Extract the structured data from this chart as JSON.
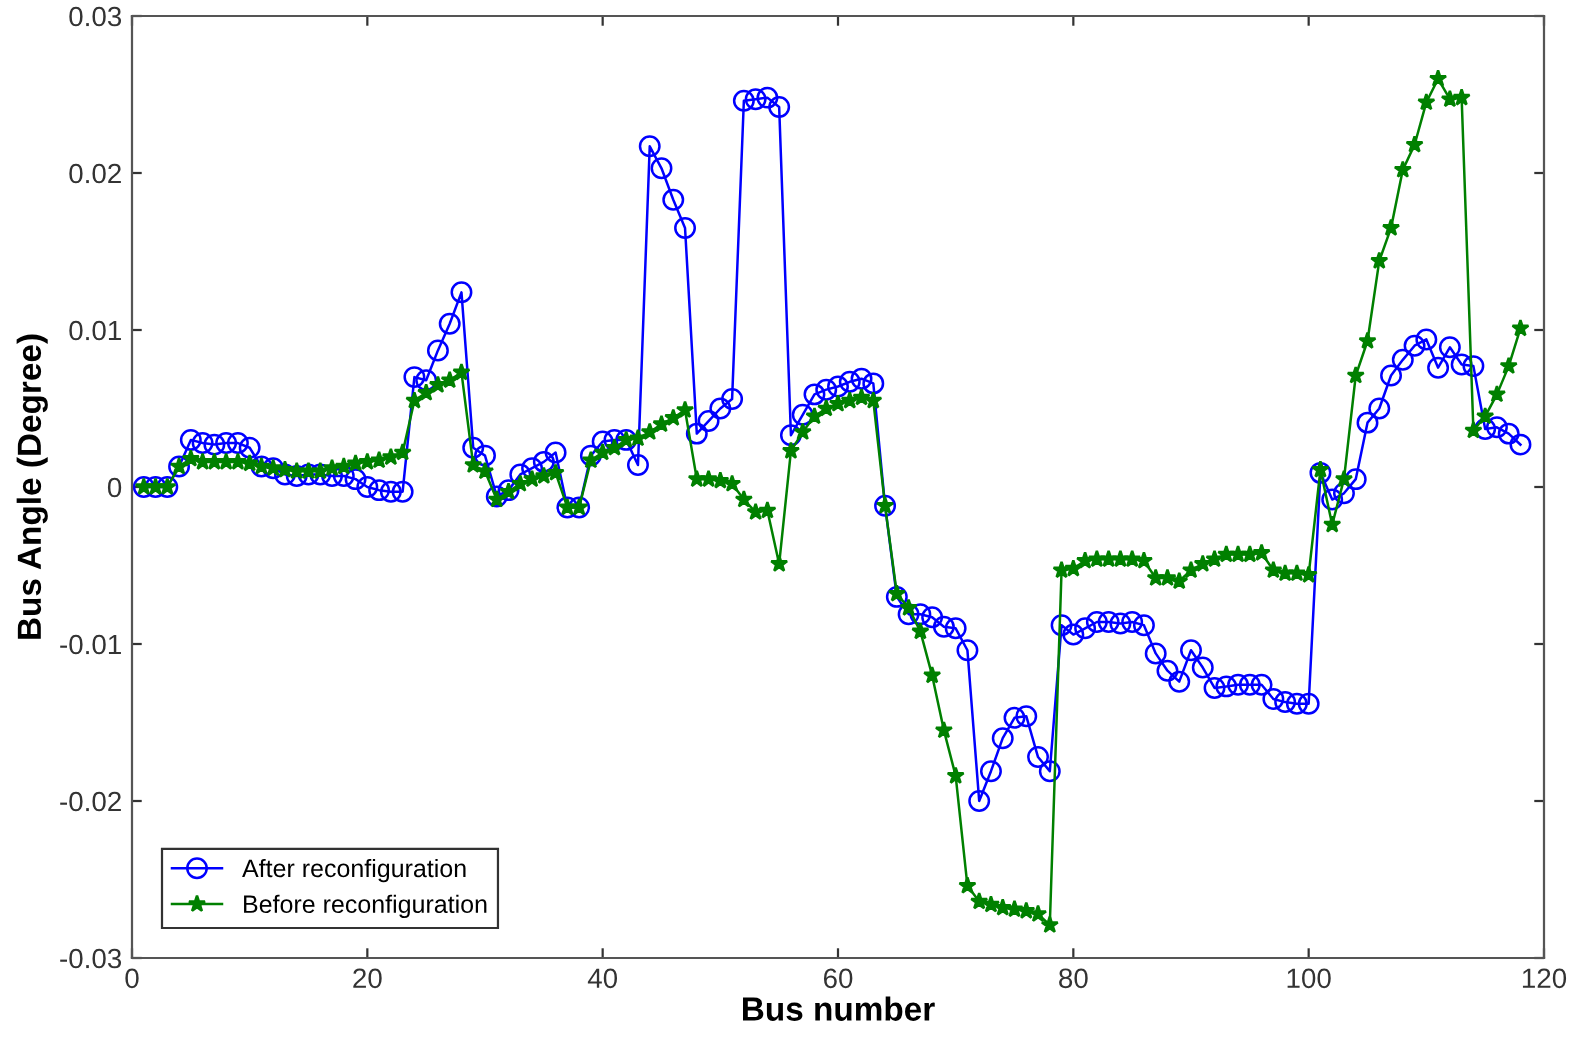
{
  "chart_data": {
    "type": "line",
    "xlabel": "Bus number",
    "ylabel": "Bus Angle (Degree)",
    "x": [
      1,
      2,
      3,
      4,
      5,
      6,
      7,
      8,
      9,
      10,
      11,
      12,
      13,
      14,
      15,
      16,
      17,
      18,
      19,
      20,
      21,
      22,
      23,
      24,
      25,
      26,
      27,
      28,
      29,
      30,
      31,
      32,
      33,
      34,
      35,
      36,
      37,
      38,
      39,
      40,
      41,
      42,
      43,
      44,
      45,
      46,
      47,
      48,
      49,
      50,
      51,
      52,
      53,
      54,
      55,
      56,
      57,
      58,
      59,
      60,
      61,
      62,
      63,
      64,
      65,
      66,
      67,
      68,
      69,
      70,
      71,
      72,
      73,
      74,
      75,
      76,
      77,
      78,
      79,
      80,
      81,
      82,
      83,
      84,
      85,
      86,
      87,
      88,
      89,
      90,
      91,
      92,
      93,
      94,
      95,
      96,
      97,
      98,
      99,
      100,
      101,
      102,
      103,
      104,
      105,
      106,
      107,
      108,
      109,
      110,
      111,
      112,
      113,
      114,
      115,
      116,
      117,
      118
    ],
    "series": [
      {
        "name": "After reconfiguration",
        "color": "#0000ff",
        "marker": "circle",
        "values": [
          0,
          0,
          0,
          0.0013,
          0.003,
          0.0028,
          0.0027,
          0.0028,
          0.0028,
          0.0025,
          0.0013,
          0.0012,
          0.0008,
          0.0007,
          0.0008,
          0.0008,
          0.0007,
          0.0007,
          0.0005,
          0,
          -0.0002,
          -0.0003,
          -0.0003,
          0.007,
          0.0068,
          0.0087,
          0.0104,
          0.0124,
          0.0025,
          0.002,
          -0.0006,
          -0.0002,
          0.0008,
          0.0012,
          0.0016,
          0.0022,
          -0.0013,
          -0.0013,
          0.002,
          0.0029,
          0.003,
          0.003,
          0.0014,
          0.0217,
          0.0203,
          0.0183,
          0.0165,
          0.0034,
          0.0042,
          0.005,
          0.0056,
          0.0246,
          0.0247,
          0.0248,
          0.0242,
          0.0033,
          0.0046,
          0.0059,
          0.0062,
          0.0064,
          0.0067,
          0.0069,
          0.0066,
          -0.0012,
          -0.007,
          -0.0081,
          -0.0081,
          -0.0083,
          -0.0089,
          -0.009,
          -0.0104,
          -0.02,
          -0.0181,
          -0.016,
          -0.0147,
          -0.0146,
          -0.0172,
          -0.0181,
          -0.0088,
          -0.0094,
          -0.009,
          -0.0086,
          -0.0086,
          -0.0087,
          -0.0086,
          -0.0088,
          -0.0106,
          -0.0117,
          -0.0124,
          -0.0104,
          -0.0115,
          -0.0128,
          -0.0127,
          -0.0126,
          -0.0126,
          -0.0126,
          -0.0135,
          -0.0137,
          -0.0138,
          -0.0138,
          0.0009,
          -0.0008,
          -0.0004,
          0.0005,
          0.0041,
          0.005,
          0.0071,
          0.0081,
          0.009,
          0.0094,
          0.0076,
          0.0089,
          0.0078,
          0.0077,
          0.0037,
          0.0038,
          0.0034,
          0.0027
        ]
      },
      {
        "name": "Before reconfiguration",
        "color": "#008000",
        "marker": "star",
        "values": [
          0,
          0,
          0,
          0.0013,
          0.0018,
          0.0016,
          0.0016,
          0.0016,
          0.0016,
          0.0015,
          0.0013,
          0.0012,
          0.0011,
          0.001,
          0.001,
          0.001,
          0.0012,
          0.0013,
          0.0015,
          0.0016,
          0.0017,
          0.0019,
          0.0022,
          0.0055,
          0.006,
          0.0065,
          0.0068,
          0.0073,
          0.0014,
          0.001,
          -0.0008,
          -0.0003,
          0.0002,
          0.0005,
          0.0007,
          0.0009,
          -0.0013,
          -0.0013,
          0.0017,
          0.0022,
          0.0025,
          0.003,
          0.0031,
          0.0035,
          0.004,
          0.0044,
          0.0049,
          0.0005,
          0.0005,
          0.0004,
          0.0002,
          -0.0008,
          -0.0016,
          -0.0015,
          -0.0049,
          0.0023,
          0.0035,
          0.0045,
          0.005,
          0.0053,
          0.0055,
          0.0057,
          0.0055,
          -0.0012,
          -0.0068,
          -0.0077,
          -0.0092,
          -0.012,
          -0.0155,
          -0.0184,
          -0.0254,
          -0.0264,
          -0.0266,
          -0.0268,
          -0.0269,
          -0.027,
          -0.0272,
          -0.0279,
          -0.0053,
          -0.0052,
          -0.0047,
          -0.0046,
          -0.0046,
          -0.0046,
          -0.0046,
          -0.0047,
          -0.0058,
          -0.0058,
          -0.006,
          -0.0053,
          -0.0049,
          -0.0046,
          -0.0043,
          -0.0043,
          -0.0043,
          -0.0042,
          -0.0053,
          -0.0055,
          -0.0055,
          -0.0056,
          0.0011,
          -0.0024,
          0.0005,
          0.0071,
          0.0093,
          0.0144,
          0.0165,
          0.0202,
          0.0218,
          0.0245,
          0.026,
          0.0247,
          0.0248,
          0.0036,
          0.0045,
          0.0059,
          0.0077,
          0.0101
        ]
      }
    ],
    "xlim": [
      0,
      120
    ],
    "xticks": [
      0,
      20,
      40,
      60,
      80,
      100,
      120
    ],
    "ylim": [
      -0.03,
      0.03
    ],
    "yticks": [
      -0.03,
      -0.02,
      -0.01,
      0,
      0.01,
      0.02,
      0.03
    ],
    "grid": false,
    "legend": "bottom left",
    "line_style": "solid"
  }
}
